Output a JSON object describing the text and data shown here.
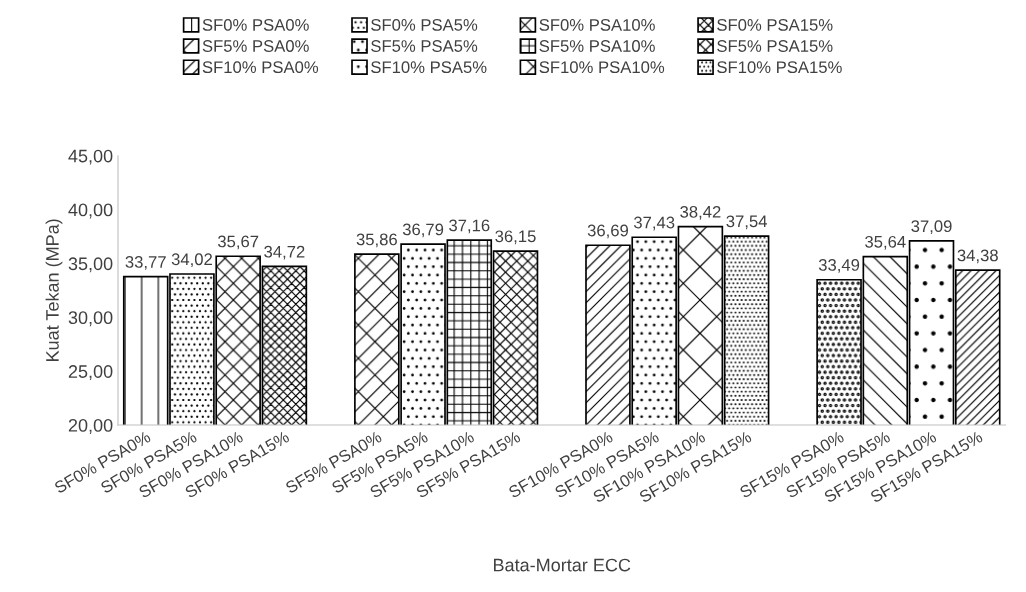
{
  "chart_data": {
    "type": "bar",
    "xlabel": "Bata-Mortar ECC",
    "ylabel": "Kuat Tekan (MPa)",
    "categories": [
      "SF0% PSA0%",
      "SF0% PSA5%",
      "SF0% PSA10%",
      "SF0% PSA15%",
      null,
      "SF5% PSA0%",
      "SF5% PSA5%",
      "SF5% PSA10%",
      "SF5% PSA15%",
      null,
      "SF10% PSA0%",
      "SF10% PSA5%",
      "SF10% PSA10%",
      "SF10% PSA15%",
      null,
      "SF15% PSA0%",
      "SF15% PSA5%",
      "SF15% PSA10%",
      "SF15% PSA15%"
    ],
    "ylim": [
      20,
      45
    ],
    "yticks": [
      {
        "value": 20,
        "label": "20,00"
      },
      {
        "value": 25,
        "label": "25,00"
      },
      {
        "value": 30,
        "label": "30,00"
      },
      {
        "value": 35,
        "label": "35,00"
      },
      {
        "value": 40,
        "label": "40,00"
      },
      {
        "value": 45,
        "label": "45,00"
      }
    ],
    "grid": false,
    "legend": "top",
    "series": [
      {
        "name": "SF0% PSA0%",
        "color": "#000000",
        "values": [
          33.77,
          null,
          null,
          null,
          null,
          null,
          null,
          null,
          null,
          null,
          null,
          null,
          null,
          null,
          null,
          null,
          null,
          null,
          null
        ],
        "value_labels": [
          "33,77",
          null,
          null,
          null,
          null,
          null,
          null,
          null,
          null,
          null,
          null,
          null,
          null,
          null,
          null,
          null,
          null,
          null,
          null
        ]
      },
      {
        "name": "SF0% PSA5%",
        "color": "#000000",
        "values": [
          null,
          34.02,
          null,
          null,
          null,
          null,
          null,
          null,
          null,
          null,
          null,
          null,
          null,
          null,
          null,
          null,
          null,
          null,
          null
        ],
        "value_labels": [
          null,
          "34,02",
          null,
          null,
          null,
          null,
          null,
          null,
          null,
          null,
          null,
          null,
          null,
          null,
          null,
          null,
          null,
          null,
          null
        ]
      },
      {
        "name": "SF0% PSA10%",
        "color": "#000000",
        "values": [
          null,
          null,
          35.67,
          null,
          null,
          null,
          null,
          null,
          null,
          null,
          null,
          null,
          null,
          null,
          null,
          null,
          null,
          null,
          null
        ],
        "value_labels": [
          null,
          null,
          "35,67",
          null,
          null,
          null,
          null,
          null,
          null,
          null,
          null,
          null,
          null,
          null,
          null,
          null,
          null,
          null,
          null
        ]
      },
      {
        "name": "SF0% PSA15%",
        "color": "#000000",
        "values": [
          null,
          null,
          null,
          34.72,
          null,
          null,
          null,
          null,
          null,
          null,
          null,
          null,
          null,
          null,
          null,
          null,
          null,
          null,
          null
        ],
        "value_labels": [
          null,
          null,
          null,
          "34,72",
          null,
          null,
          null,
          null,
          null,
          null,
          null,
          null,
          null,
          null,
          null,
          null,
          null,
          null,
          null
        ]
      },
      {
        "name": "SF5% PSA0%",
        "color": "#000000",
        "values": [
          null,
          null,
          null,
          null,
          null,
          35.86,
          null,
          null,
          null,
          null,
          null,
          null,
          null,
          null,
          null,
          null,
          null,
          null,
          null
        ],
        "value_labels": [
          null,
          null,
          null,
          null,
          null,
          "35,86",
          null,
          null,
          null,
          null,
          null,
          null,
          null,
          null,
          null,
          null,
          null,
          null,
          null
        ]
      },
      {
        "name": "SF5% PSA5%",
        "color": "#000000",
        "values": [
          null,
          null,
          null,
          null,
          null,
          null,
          36.79,
          null,
          null,
          null,
          null,
          null,
          null,
          null,
          null,
          null,
          null,
          null,
          null
        ],
        "value_labels": [
          null,
          null,
          null,
          null,
          null,
          null,
          "36,79",
          null,
          null,
          null,
          null,
          null,
          null,
          null,
          null,
          null,
          null,
          null,
          null
        ]
      },
      {
        "name": "SF5% PSA10%",
        "color": "#000000",
        "values": [
          null,
          null,
          null,
          null,
          null,
          null,
          null,
          37.16,
          null,
          null,
          null,
          null,
          null,
          null,
          null,
          null,
          null,
          null,
          null
        ],
        "value_labels": [
          null,
          null,
          null,
          null,
          null,
          null,
          null,
          "37,16",
          null,
          null,
          null,
          null,
          null,
          null,
          null,
          null,
          null,
          null,
          null
        ]
      },
      {
        "name": "SF5% PSA15%",
        "color": "#000000",
        "values": [
          null,
          null,
          null,
          null,
          null,
          null,
          null,
          null,
          36.15,
          null,
          null,
          null,
          null,
          null,
          null,
          null,
          null,
          null,
          null
        ],
        "value_labels": [
          null,
          null,
          null,
          null,
          null,
          null,
          null,
          null,
          "36,15",
          null,
          null,
          null,
          null,
          null,
          null,
          null,
          null,
          null,
          null
        ]
      },
      {
        "name": "SF10% PSA0%",
        "color": "#000000",
        "values": [
          null,
          null,
          null,
          null,
          null,
          null,
          null,
          null,
          null,
          null,
          36.69,
          null,
          null,
          null,
          null,
          null,
          null,
          null,
          null
        ],
        "value_labels": [
          null,
          null,
          null,
          null,
          null,
          null,
          null,
          null,
          null,
          null,
          "36,69",
          null,
          null,
          null,
          null,
          null,
          null,
          null,
          null
        ]
      },
      {
        "name": "SF10% PSA5%",
        "color": "#000000",
        "values": [
          null,
          null,
          null,
          null,
          null,
          null,
          null,
          null,
          null,
          null,
          null,
          37.43,
          null,
          null,
          null,
          null,
          null,
          null,
          null
        ],
        "value_labels": [
          null,
          null,
          null,
          null,
          null,
          null,
          null,
          null,
          null,
          null,
          null,
          "37,43",
          null,
          null,
          null,
          null,
          null,
          null,
          null
        ]
      },
      {
        "name": "SF10% PSA10%",
        "color": "#000000",
        "values": [
          null,
          null,
          null,
          null,
          null,
          null,
          null,
          null,
          null,
          null,
          null,
          null,
          38.42,
          null,
          null,
          null,
          null,
          null,
          null
        ],
        "value_labels": [
          null,
          null,
          null,
          null,
          null,
          null,
          null,
          null,
          null,
          null,
          null,
          null,
          "38,42",
          null,
          null,
          null,
          null,
          null,
          null
        ]
      },
      {
        "name": "SF10% PSA15%",
        "color": "#000000",
        "values": [
          null,
          null,
          null,
          null,
          null,
          null,
          null,
          null,
          null,
          null,
          null,
          null,
          null,
          37.54,
          null,
          null,
          null,
          null,
          null
        ],
        "value_labels": [
          null,
          null,
          null,
          null,
          null,
          null,
          null,
          null,
          null,
          null,
          null,
          null,
          null,
          "37,54",
          null,
          null,
          null,
          null,
          null
        ]
      },
      {
        "color": "#000000",
        "values": [
          null,
          null,
          null,
          null,
          null,
          null,
          null,
          null,
          null,
          null,
          null,
          null,
          null,
          null,
          null,
          33.49,
          null,
          null,
          null
        ],
        "value_labels": [
          null,
          null,
          null,
          null,
          null,
          null,
          null,
          null,
          null,
          null,
          null,
          null,
          null,
          null,
          null,
          "33,49",
          null,
          null,
          null
        ]
      },
      {
        "color": "#000000",
        "values": [
          null,
          null,
          null,
          null,
          null,
          null,
          null,
          null,
          null,
          null,
          null,
          null,
          null,
          null,
          null,
          null,
          35.64,
          null,
          null
        ],
        "value_labels": [
          null,
          null,
          null,
          null,
          null,
          null,
          null,
          null,
          null,
          null,
          null,
          null,
          null,
          null,
          null,
          null,
          "35,64",
          null,
          null
        ]
      },
      {
        "color": "#000000",
        "values": [
          null,
          null,
          null,
          null,
          null,
          null,
          null,
          null,
          null,
          null,
          null,
          null,
          null,
          null,
          null,
          null,
          null,
          37.09,
          null
        ],
        "value_labels": [
          null,
          null,
          null,
          null,
          null,
          null,
          null,
          null,
          null,
          null,
          null,
          null,
          null,
          null,
          null,
          null,
          null,
          "37,09",
          null
        ]
      },
      {
        "color": "#000000",
        "values": [
          null,
          null,
          null,
          null,
          null,
          null,
          null,
          null,
          null,
          null,
          null,
          null,
          null,
          null,
          null,
          null,
          null,
          null,
          34.38
        ],
        "value_labels": [
          null,
          null,
          null,
          null,
          null,
          null,
          null,
          null,
          null,
          null,
          null,
          null,
          null,
          null,
          null,
          null,
          null,
          null,
          "34,38"
        ]
      }
    ]
  }
}
